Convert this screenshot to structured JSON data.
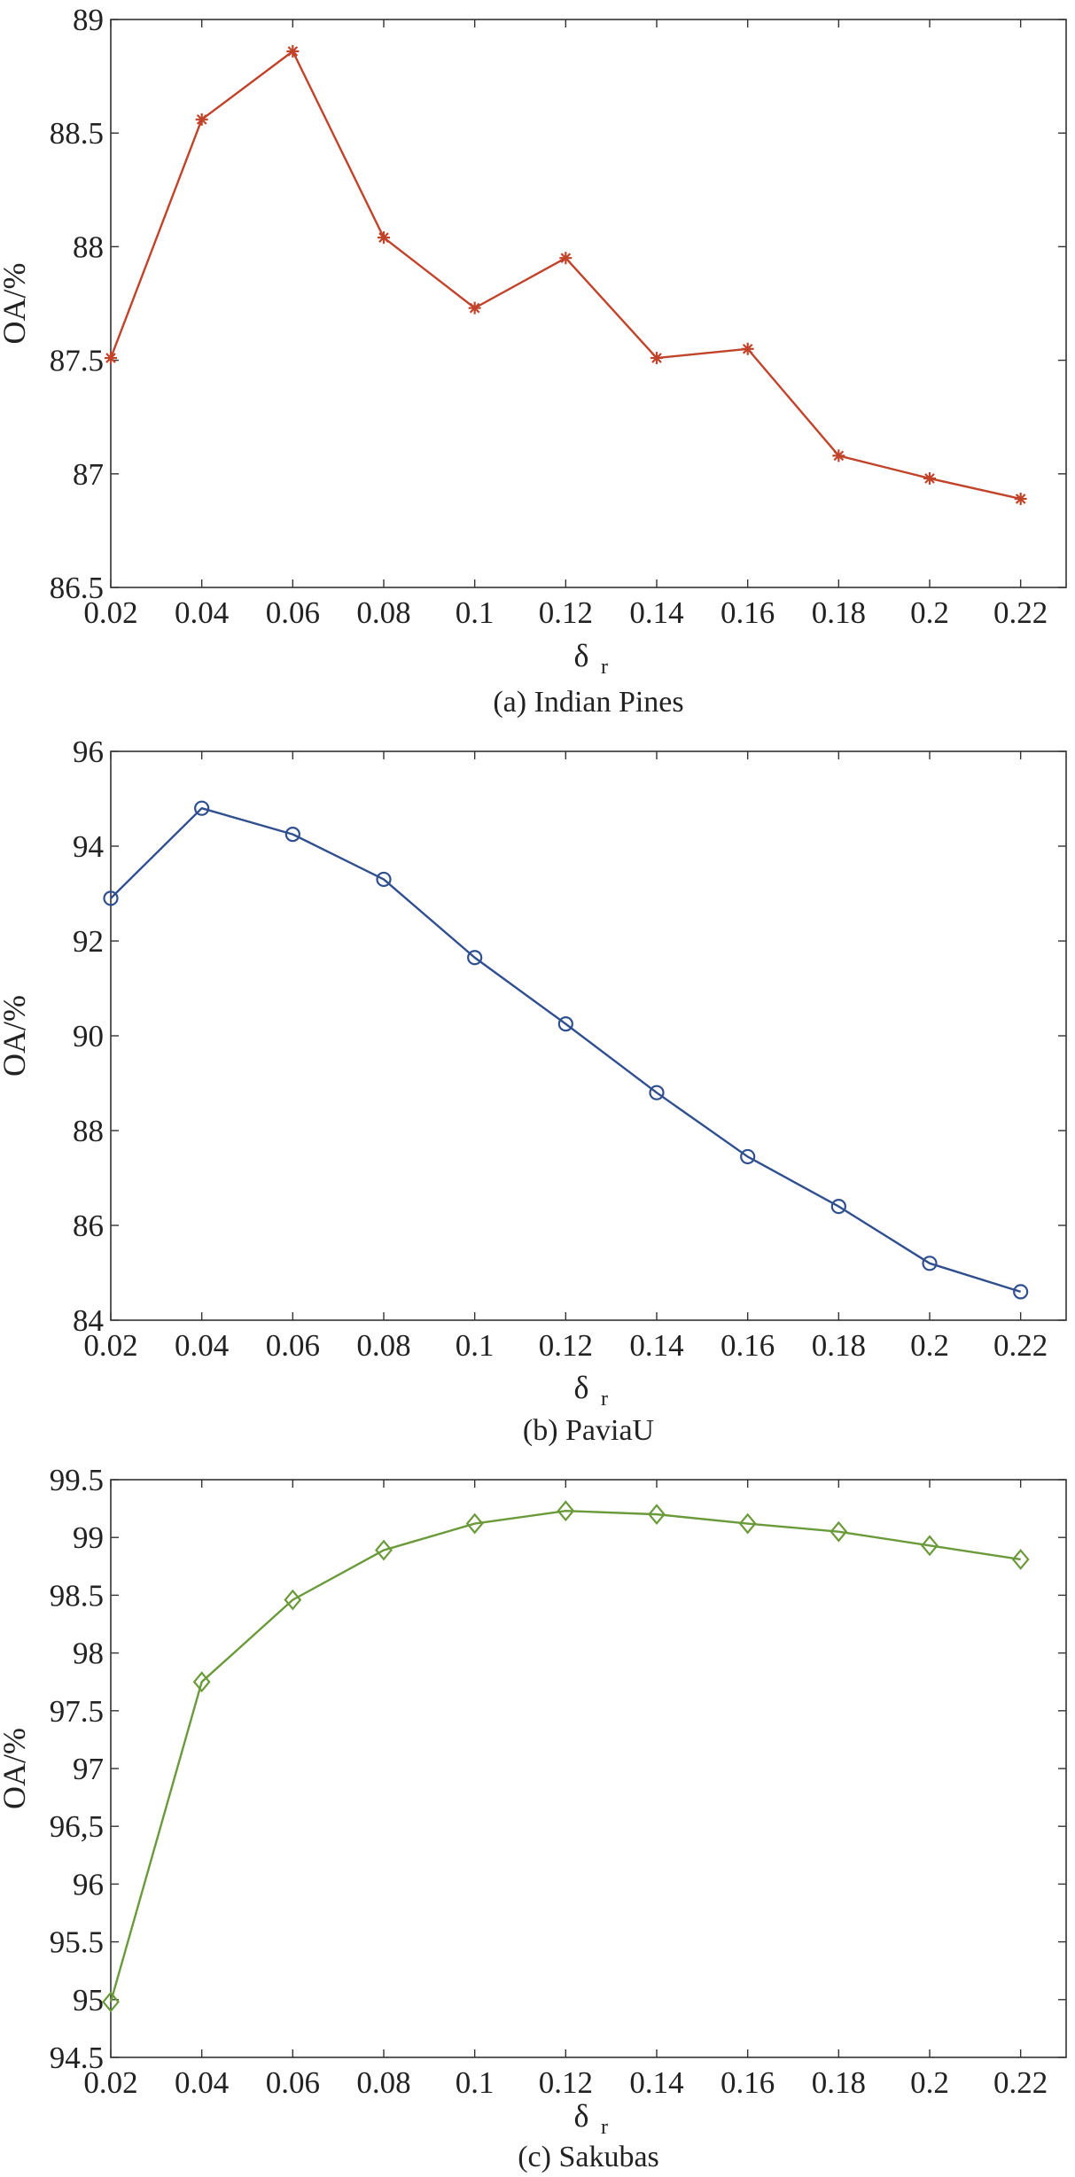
{
  "chart_data": [
    {
      "type": "line",
      "caption": "(a) Indian Pines",
      "xlabel": "δ",
      "xlabel_sub": "r",
      "ylabel": "OA/%",
      "xlim": [
        0.02,
        0.23
      ],
      "ylim": [
        86.5,
        89
      ],
      "x_ticks": [
        "0.02",
        "0.04",
        "0.06",
        "0.08",
        "0.1",
        "0.12",
        "0.14",
        "0.16",
        "0.18",
        "0.2",
        "0.22"
      ],
      "y_ticks": [
        "86.5",
        "87",
        "87.5",
        "88",
        "88.5",
        "89"
      ],
      "grid": false,
      "series": [
        {
          "marker": "asterisk",
          "color": "#c0432a",
          "x": [
            0.02,
            0.04,
            0.06,
            0.08,
            0.1,
            0.12,
            0.14,
            0.16,
            0.18,
            0.2,
            0.22
          ],
          "values": [
            87.51,
            88.56,
            88.86,
            88.04,
            87.73,
            87.95,
            87.51,
            87.55,
            87.08,
            86.98,
            86.89
          ]
        }
      ]
    },
    {
      "type": "line",
      "caption": "(b) PaviaU",
      "xlabel": "δ",
      "xlabel_sub": "r",
      "ylabel": "OA/%",
      "xlim": [
        0.02,
        0.23
      ],
      "ylim": [
        84,
        96
      ],
      "x_ticks": [
        "0.02",
        "0.04",
        "0.06",
        "0.08",
        "0.1",
        "0.12",
        "0.14",
        "0.16",
        "0.18",
        "0.2",
        "0.22"
      ],
      "y_ticks": [
        "84",
        "86",
        "88",
        "90",
        "92",
        "94",
        "96"
      ],
      "grid": false,
      "series": [
        {
          "marker": "circle",
          "color": "#2f4f8f",
          "x": [
            0.02,
            0.04,
            0.06,
            0.08,
            0.1,
            0.12,
            0.14,
            0.16,
            0.18,
            0.2,
            0.22
          ],
          "values": [
            92.9,
            94.8,
            94.25,
            93.3,
            91.65,
            90.25,
            88.8,
            87.45,
            86.4,
            85.2,
            84.6
          ]
        }
      ]
    },
    {
      "type": "line",
      "caption": "(c) Sakubas",
      "xlabel": "δ",
      "xlabel_sub": "r",
      "ylabel": "OA/%",
      "xlim": [
        0.02,
        0.23
      ],
      "ylim": [
        94.5,
        99.5
      ],
      "x_ticks": [
        "0.02",
        "0.04",
        "0.06",
        "0.08",
        "0.1",
        "0.12",
        "0.14",
        "0.16",
        "0.18",
        "0.2",
        "0.22"
      ],
      "y_ticks": [
        "94.5",
        "95",
        "95.5",
        "96",
        "96,5",
        "97",
        "97.5",
        "98",
        "98.5",
        "99",
        "99.5"
      ],
      "grid": false,
      "series": [
        {
          "marker": "diamond",
          "color": "#6a9a3a",
          "x": [
            0.02,
            0.04,
            0.06,
            0.08,
            0.1,
            0.12,
            0.14,
            0.16,
            0.18,
            0.2,
            0.22
          ],
          "values": [
            94.98,
            97.75,
            98.46,
            98.89,
            99.12,
            99.23,
            99.2,
            99.12,
            99.05,
            98.93,
            98.81
          ]
        }
      ]
    }
  ]
}
